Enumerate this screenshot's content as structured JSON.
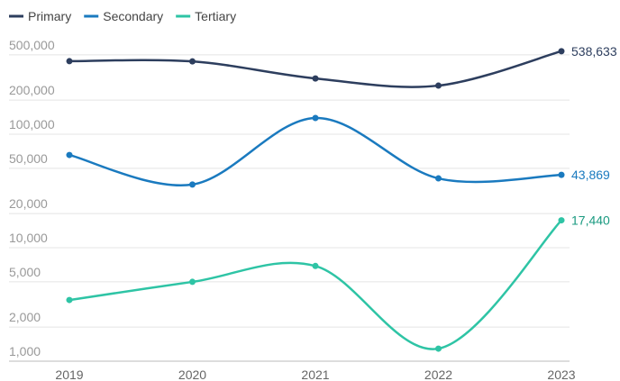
{
  "chart_data": {
    "type": "line",
    "categories": [
      "2019",
      "2020",
      "2021",
      "2022",
      "2023"
    ],
    "series": [
      {
        "name": "Primary",
        "color": "#2d3e5e",
        "values": [
          440000,
          438000,
          310000,
          268000,
          538633
        ],
        "value_labels": [
          null,
          null,
          null,
          null,
          "538,633"
        ]
      },
      {
        "name": "Secondary",
        "color": "#1a7abf",
        "values": [
          65600,
          36000,
          139000,
          40800,
          43869
        ],
        "value_labels": [
          null,
          null,
          null,
          null,
          "43,869"
        ]
      },
      {
        "name": "Tertiary",
        "color": "#2ec4a5",
        "values": [
          3460,
          5000,
          6900,
          1290,
          17440
        ],
        "value_labels": [
          null,
          null,
          null,
          null,
          "17,440"
        ]
      }
    ],
    "log_scale": true,
    "ylim": [
      1000,
      750000
    ],
    "yticks": [
      {
        "value": 1000,
        "label": "1,000"
      },
      {
        "value": 2000,
        "label": "2,000"
      },
      {
        "value": 5000,
        "label": "5,000"
      },
      {
        "value": 10000,
        "label": "10,000"
      },
      {
        "value": 20000,
        "label": "20,000"
      },
      {
        "value": 50000,
        "label": "50,000"
      },
      {
        "value": 100000,
        "label": "100,000"
      },
      {
        "value": 200000,
        "label": "200,000"
      },
      {
        "value": 500000,
        "label": "500,000"
      }
    ],
    "grid": true,
    "legend": "top-left"
  }
}
